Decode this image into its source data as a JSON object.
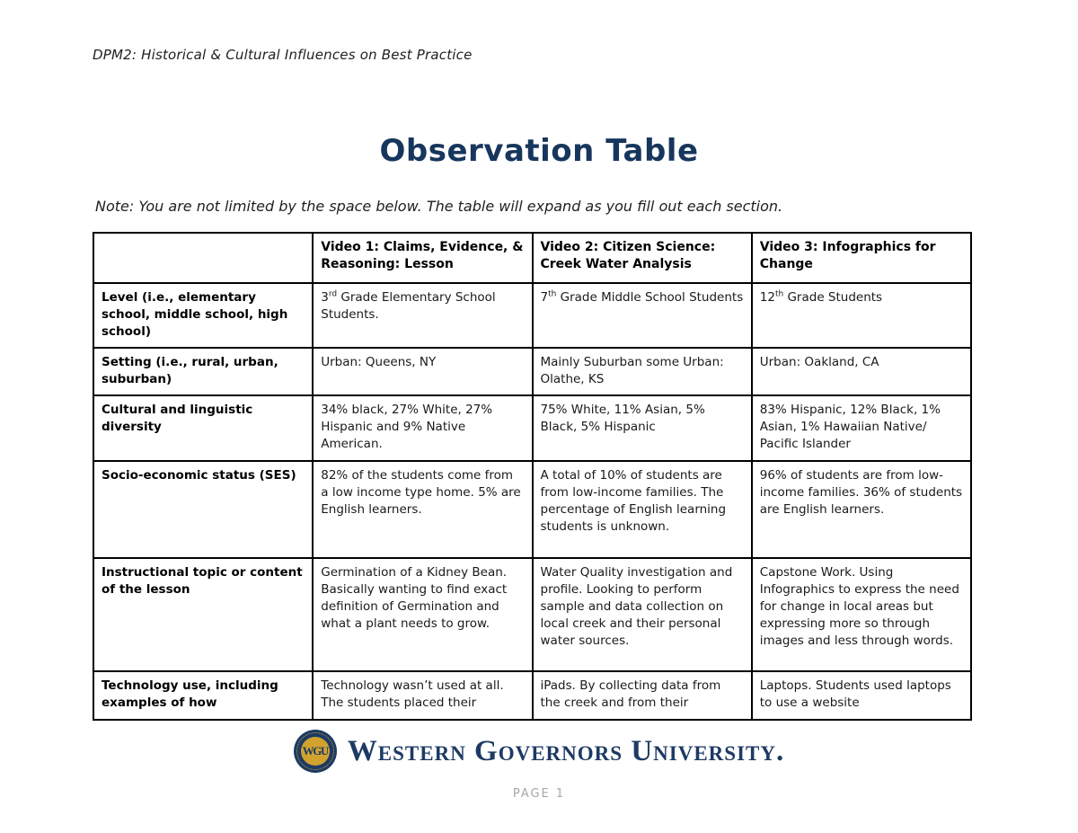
{
  "page": {
    "header": "DPM2: Historical & Cultural Influences on Best Practice",
    "title": "Observation Table",
    "note": "Note: You are not limited by the space below. The table will expand as you fill out each section.",
    "footer": {
      "logo_monogram": "WGU",
      "university": "Western Governors University.",
      "page_label": "PAGE 1"
    }
  },
  "colors": {
    "title_navy": "#17365d",
    "wgu_navy": "#1d3a64",
    "wgu_gold": "#d2a22f",
    "page_number_gray": "#a7a7a7"
  },
  "table": {
    "columns": [
      "",
      "Video 1: Claims, Evidence, & Reasoning: Lesson",
      "Video 2: Citizen Science: Creek Water Analysis",
      "Video 3: Infographics for Change"
    ],
    "rows": [
      {
        "label": "Level (i.e., elementary school, middle school, high school)",
        "cells": [
          {
            "pre": "3",
            "sup": "rd",
            "post": " Grade Elementary School Students."
          },
          {
            "pre": "7",
            "sup": "th",
            "post": " Grade Middle School Students"
          },
          {
            "pre": "12",
            "sup": "th",
            "post": " Grade Students"
          }
        ]
      },
      {
        "label": "Setting (i.e., rural, urban, suburban)",
        "cells": [
          "Urban: Queens, NY",
          "Mainly Suburban some Urban: Olathe, KS",
          "Urban: Oakland, CA"
        ]
      },
      {
        "label": "Cultural and linguistic diversity",
        "cells": [
          "34% black, 27% White, 27% Hispanic and 9% Native American.",
          "75% White, 11% Asian, 5% Black, 5% Hispanic",
          "83% Hispanic, 12% Black, 1% Asian, 1% Hawaiian Native/ Pacific Islander"
        ]
      },
      {
        "label": "Socio-economic status (SES)",
        "cells": [
          "82% of the students come from a low income type home. 5% are English learners.",
          "A total of 10% of students are from low-income families. The percentage of English learning students is unknown.",
          "96% of students are from low-income families. 36% of students are English learners."
        ]
      },
      {
        "label": "Instructional topic or content of the lesson",
        "cells": [
          "Germination of a Kidney Bean. Basically wanting to find exact definition of Germination and what a plant needs to grow.",
          "Water Quality investigation and profile. Looking to perform sample and data collection on local creek and their personal water sources.",
          "Capstone Work. Using Infographics to express the need for change in local areas but expressing more so through images and less through words."
        ]
      },
      {
        "label": "Technology use, including examples of how",
        "cells": [
          "Technology wasn’t used at all. The students placed their",
          "iPads. By collecting data from the creek and from their",
          "Laptops. Students used laptops to use a website"
        ]
      }
    ]
  }
}
